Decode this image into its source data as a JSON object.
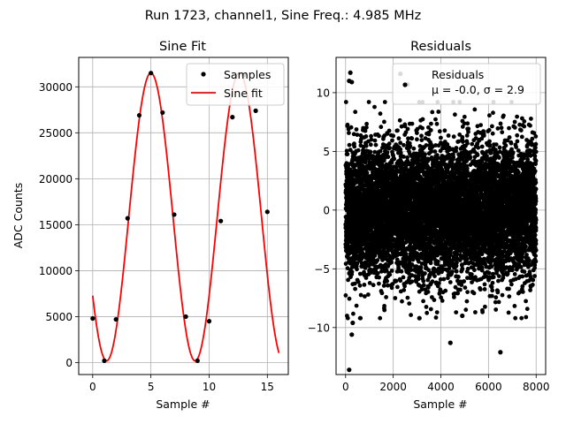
{
  "figure": {
    "suptitle": "Run 1723, channel1, Sine Freq.: 4.985 MHz"
  },
  "chart_data": [
    {
      "type": "line",
      "title": "Sine Fit",
      "xlabel": "Sample #",
      "ylabel": "ADC Counts",
      "xlim": [
        -1.2,
        16.8
      ],
      "ylim": [
        -1300,
        33200
      ],
      "xticks": [
        0,
        5,
        10,
        15
      ],
      "yticks": [
        0,
        5000,
        10000,
        15000,
        20000,
        25000,
        30000
      ],
      "grid": true,
      "legend": {
        "placement": "top-right",
        "entries": [
          "Samples",
          "Sine fit"
        ]
      },
      "fit_model": {
        "amplitude": 15660,
        "offset": 15850,
        "period": 7.6,
        "phase_sample": 5.0,
        "x_range": [
          0,
          16
        ]
      },
      "series": [
        {
          "name": "Samples",
          "kind": "scatter",
          "color": "#000000",
          "x": [
            0,
            1,
            2,
            3,
            4,
            5,
            6,
            7,
            8,
            9,
            10,
            11,
            12,
            13,
            14,
            15
          ],
          "y": [
            4800,
            200,
            4700,
            15700,
            26900,
            31500,
            27200,
            16100,
            5000,
            200,
            4500,
            15400,
            26700,
            31300,
            27400,
            16400
          ]
        },
        {
          "name": "Sine fit",
          "kind": "line",
          "color": "#ff0000"
        }
      ]
    },
    {
      "type": "scatter",
      "title": "Residuals",
      "xlabel": "Sample #",
      "ylabel": "",
      "xlim": [
        -400,
        8400
      ],
      "ylim": [
        -14.0,
        13.0
      ],
      "xticks": [
        0,
        2000,
        4000,
        6000,
        8000
      ],
      "yticks": [
        -10,
        -5,
        0,
        5,
        10
      ],
      "grid": true,
      "legend": {
        "placement": "top-right",
        "entries": [
          "Residuals",
          "μ = -0.0, σ = 2.9"
        ]
      },
      "series": [
        {
          "name": "Residuals",
          "color": "#000000",
          "n_points": 8000,
          "x_range": [
            0,
            8000
          ],
          "mean": 0.0,
          "sigma": 2.9,
          "outliers": [
            {
              "x": 200,
              "y": 11.7
            },
            {
              "x": 150,
              "y": 11.0
            },
            {
              "x": 260,
              "y": 10.9
            },
            {
              "x": 2600,
              "y": 10.7
            },
            {
              "x": 2300,
              "y": 11.6
            },
            {
              "x": 150,
              "y": -13.6
            },
            {
              "x": 260,
              "y": -10.6
            },
            {
              "x": 4400,
              "y": -11.3
            },
            {
              "x": 6500,
              "y": -12.1
            },
            {
              "x": 300,
              "y": -9.6
            },
            {
              "x": 3100,
              "y": -9.2
            },
            {
              "x": 4900,
              "y": -9.0
            }
          ]
        }
      ]
    }
  ]
}
